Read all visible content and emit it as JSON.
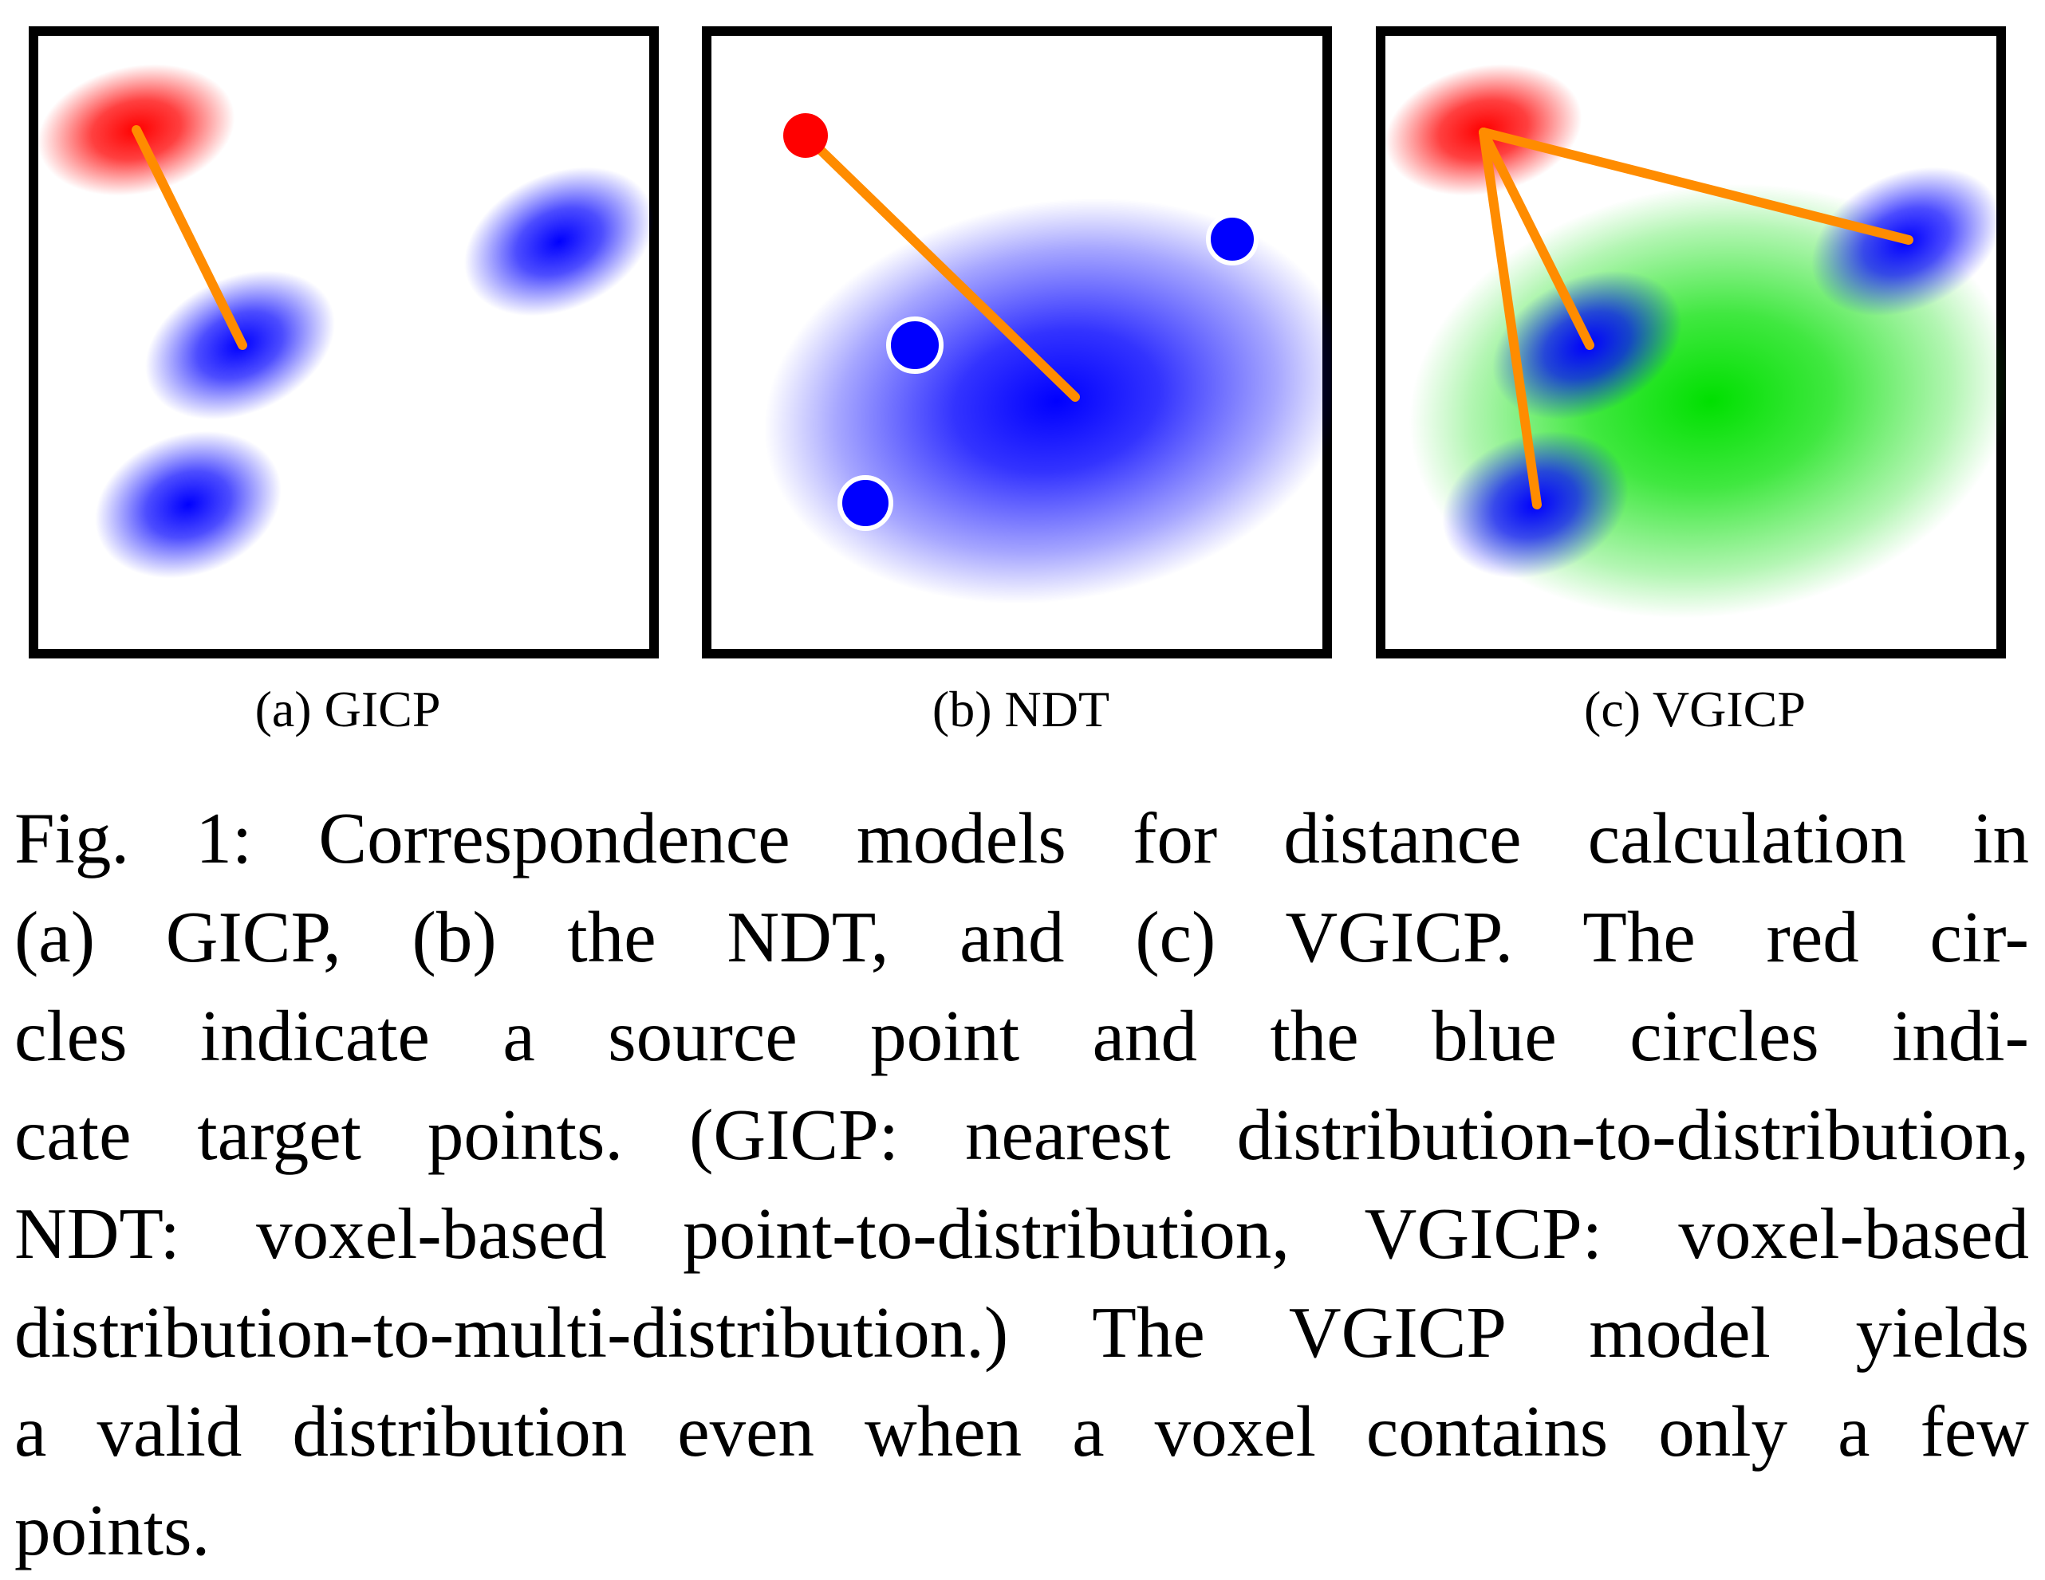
{
  "figure": {
    "panels": [
      {
        "id": "a",
        "label": "(a) GICP"
      },
      {
        "id": "b",
        "label": "(b) NDT"
      },
      {
        "id": "c",
        "label": "(c) VGICP"
      }
    ],
    "caption_lines": [
      "Fig. 1: Correspondence models for distance calculation in",
      "(a) GICP, (b) the NDT, and (c) VGICP. The red cir-",
      "cles indicate a source point and the blue circles indi-",
      "cate target points. (GICP: nearest distribution-to-distribution,",
      "NDT: voxel-based point-to-distribution, VGICP: voxel-based",
      "distribution-to-multi-distribution.) The VGICP model yields",
      "a valid distribution even when a voxel contains only a few",
      "points."
    ]
  },
  "colors": {
    "source": "#ff0000",
    "target": "#0000ff",
    "voxel_distribution": "#00ff00",
    "correspondence": "#ff8c00",
    "frame": "#000000"
  }
}
